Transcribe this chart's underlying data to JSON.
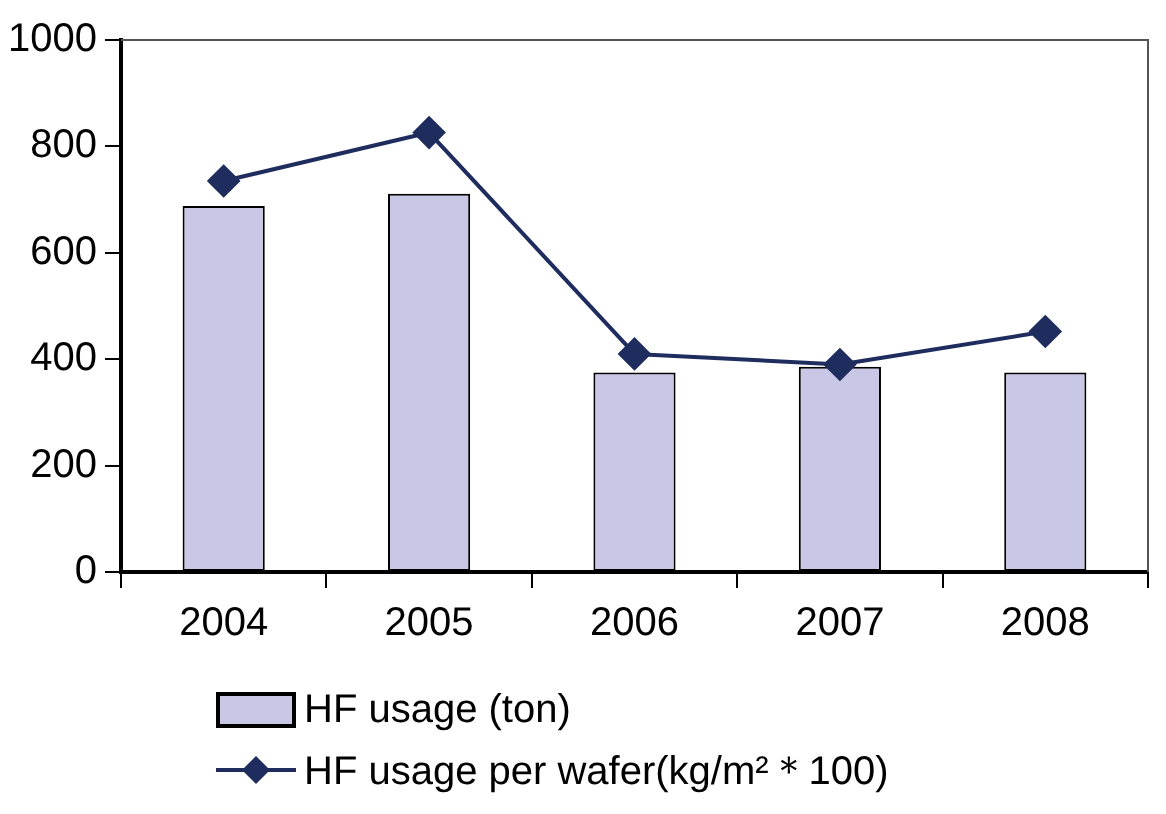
{
  "chart_data": {
    "type": "bar",
    "categories": [
      "2004",
      "2005",
      "2006",
      "2007",
      "2008"
    ],
    "series": [
      {
        "name": "HF usage (ton)",
        "color": "#c8c8e6",
        "values": [
          688,
          711,
          375,
          386,
          375
        ]
      },
      {
        "name": "HF usage per wafer(kg/m²＊100)",
        "type": "line",
        "color": "#1f2d5e",
        "marker": "diamond",
        "values": [
          735,
          826,
          410,
          390,
          452
        ]
      }
    ],
    "ylim": [
      0,
      1000
    ],
    "yticks": [
      0,
      200,
      400,
      600,
      800,
      1000
    ],
    "grid": false,
    "legend": "bottom"
  }
}
